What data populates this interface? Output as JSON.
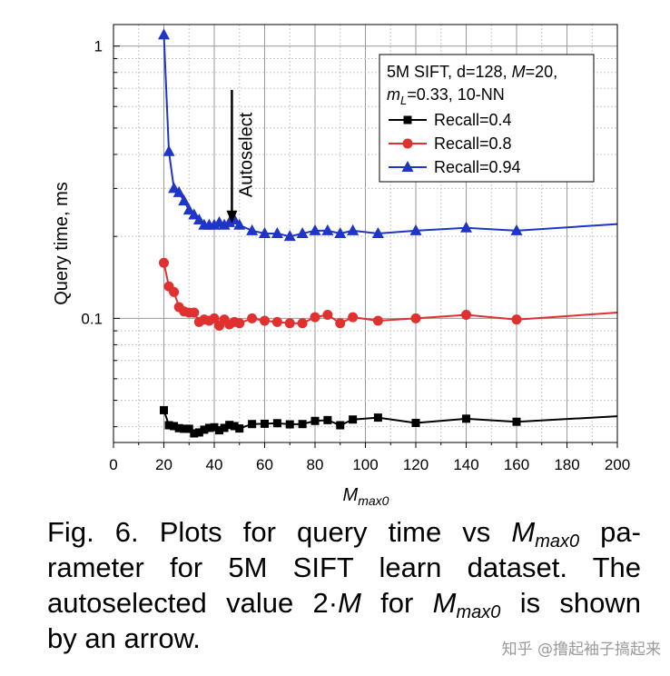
{
  "chart_data": {
    "type": "line",
    "xlabel": "M",
    "xlabel_sub": "max0",
    "ylabel": "Query time, ms",
    "xlim": [
      0,
      200
    ],
    "ylim": [
      0.035,
      1.2
    ],
    "yscale": "log",
    "xticks": [
      0,
      20,
      40,
      60,
      80,
      100,
      120,
      140,
      160,
      180,
      200
    ],
    "yticks": [
      {
        "value": 0.1,
        "label": "0.1"
      },
      {
        "value": 1,
        "label": "1"
      }
    ],
    "grid": true,
    "legend_position": "top-right",
    "legend_title": {
      "line1": "5M SIFT, d=128, ",
      "line1_italic": "M",
      "line1_tail": "=20,",
      "line2_italic": "m",
      "line2_sub": "L",
      "line2_tail": "=0.33, 10-NN"
    },
    "annotation": {
      "text": "Autoselect",
      "x": 47,
      "y_from": 0.38,
      "y_to": 0.22
    },
    "series": [
      {
        "name": "Recall=0.4",
        "color": "#000000",
        "marker": "square",
        "x": [
          20,
          22,
          24,
          26,
          28,
          30,
          32,
          34,
          36,
          38,
          40,
          42,
          44,
          46,
          48,
          50,
          55,
          60,
          65,
          70,
          75,
          80,
          85,
          90,
          95,
          105,
          120,
          140,
          160,
          200
        ],
        "y": [
          0.046,
          0.0405,
          0.0402,
          0.0395,
          0.0393,
          0.0393,
          0.0378,
          0.0381,
          0.039,
          0.0396,
          0.0398,
          0.0388,
          0.0396,
          0.0406,
          0.0402,
          0.0394,
          0.0409,
          0.041,
          0.0412,
          0.0408,
          0.0409,
          0.042,
          0.0423,
          0.0405,
          0.0425,
          0.0432,
          0.0413,
          0.0428,
          0.0417,
          0.0437
        ]
      },
      {
        "name": "Recall=0.8",
        "color": "#e03030",
        "marker": "circle",
        "x": [
          20,
          22,
          24,
          26,
          28,
          30,
          32,
          34,
          36,
          38,
          40,
          42,
          44,
          46,
          48,
          50,
          55,
          60,
          65,
          70,
          75,
          80,
          85,
          90,
          95,
          105,
          120,
          140,
          160,
          200
        ],
        "y": [
          0.16,
          0.131,
          0.125,
          0.11,
          0.106,
          0.105,
          0.105,
          0.097,
          0.099,
          0.098,
          0.1,
          0.094,
          0.099,
          0.095,
          0.097,
          0.096,
          0.1,
          0.098,
          0.097,
          0.096,
          0.096,
          0.101,
          0.103,
          0.096,
          0.101,
          0.098,
          0.1,
          0.103,
          0.099,
          0.105
        ]
      },
      {
        "name": "Recall=0.94",
        "color": "#1f35c7",
        "marker": "triangle",
        "x": [
          20,
          22,
          24,
          26,
          28,
          30,
          32,
          34,
          36,
          38,
          40,
          42,
          44,
          46,
          48,
          50,
          55,
          60,
          65,
          70,
          75,
          80,
          85,
          90,
          95,
          105,
          120,
          140,
          160,
          200
        ],
        "y": [
          1.1,
          0.41,
          0.3,
          0.29,
          0.27,
          0.25,
          0.24,
          0.23,
          0.22,
          0.22,
          0.22,
          0.225,
          0.22,
          0.225,
          0.23,
          0.22,
          0.21,
          0.205,
          0.205,
          0.2,
          0.205,
          0.21,
          0.21,
          0.205,
          0.21,
          0.205,
          0.21,
          0.215,
          0.21,
          0.222
        ]
      }
    ]
  },
  "caption": {
    "line1_pre": "Fig. 6. Plots for query time vs ",
    "line1_italic": "M",
    "line1_sub": "max0",
    "line1_post": " pa-",
    "line2": "rameter for 5M SIFT learn dataset. The",
    "line3_pre": "autoselected value 2·",
    "line3_italic1": "M",
    "line3_mid": " for ",
    "line3_italic2": "M",
    "line3_sub": "max0",
    "line3_post": " is shown",
    "line4": "by an arrow."
  },
  "watermark": "知乎 @撸起袖子搞起来"
}
